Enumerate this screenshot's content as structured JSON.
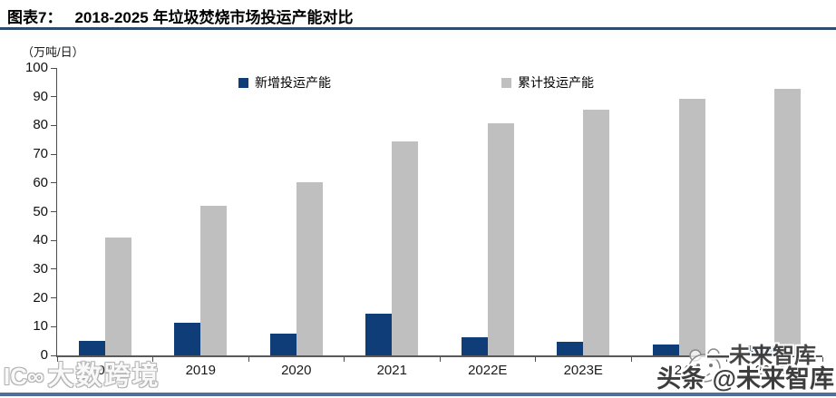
{
  "header": {
    "prefix": "图表7：",
    "title": "2018-2025 年垃圾焚烧市场投运产能对比"
  },
  "chart_data": {
    "type": "bar",
    "title": "2018-2025 年垃圾焚烧市场投运产能对比",
    "unit_label": "（万吨/日）",
    "categories": [
      "2018",
      "2019",
      "2020",
      "2021",
      "2022E",
      "2023E",
      "2024E",
      "2025E"
    ],
    "series": [
      {
        "name": "新增投运产能",
        "color": "#0e3d78",
        "values": [
          4.9,
          11.3,
          7.5,
          14.6,
          6.3,
          4.6,
          3.9,
          3.5
        ]
      },
      {
        "name": "累计投运产能",
        "color": "#bfbfbf",
        "values": [
          41.0,
          52.2,
          60.2,
          74.6,
          80.8,
          85.6,
          89.3,
          92.9
        ]
      }
    ],
    "xlabel": "",
    "ylabel": "（万吨/日）",
    "ylim": [
      0,
      100
    ],
    "yticks": [
      0,
      10,
      20,
      30,
      40,
      50,
      60,
      70,
      80,
      90,
      100
    ],
    "grid": false,
    "legend_position": "top-inside"
  },
  "watermarks": {
    "bottom_left_logo": "IC∞",
    "bottom_left": "大数跨境",
    "right_top": "—未来智库",
    "right_bottom": "头条 @未来智库",
    "face_icon": "doge-face"
  },
  "colors": {
    "bar_new": "#0e3d78",
    "bar_cumulative": "#bfbfbf",
    "title_rule": "#2e4d6e",
    "bottom_rule": "#4e6f9b",
    "axis": "#595959"
  }
}
